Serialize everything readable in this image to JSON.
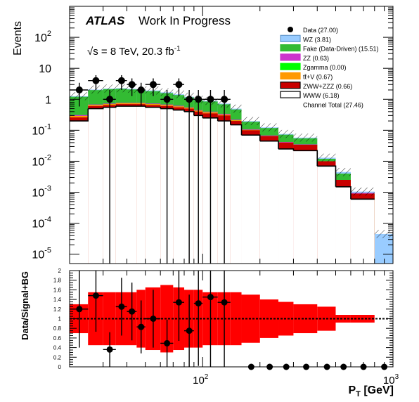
{
  "chart_data": [
    {
      "type": "stacked-histogram",
      "experiment_label": "ATLAS",
      "status_label": "Work In Progress",
      "energy_label": "√s = 8 TeV, 20.3 fb",
      "lumi_superscript": "-1",
      "ylabel": "Events",
      "yscale": "log",
      "ylim": [
        5e-06,
        1000
      ],
      "y_ticks": [
        {
          "value": 1e-05,
          "base": "10",
          "exp": "-5"
        },
        {
          "value": 0.0001,
          "base": "10",
          "exp": "-4"
        },
        {
          "value": 0.001,
          "base": "10",
          "exp": "-3"
        },
        {
          "value": 0.01,
          "base": "10",
          "exp": "-2"
        },
        {
          "value": 0.1,
          "base": "10",
          "exp": "-1"
        },
        {
          "value": 1,
          "base": "1",
          "exp": ""
        },
        {
          "value": 10,
          "base": "10",
          "exp": ""
        },
        {
          "value": 100,
          "base": "10",
          "exp": "2"
        }
      ],
      "bin_edges": [
        20,
        25,
        30,
        35,
        40,
        45,
        50,
        60,
        70,
        80,
        90,
        100,
        120,
        140,
        160,
        200,
        250,
        300,
        400,
        500,
        600,
        800,
        1000
      ],
      "stack": [
        {
          "name": "WWW",
          "color": "#ffffff",
          "values": [
            0.2,
            0.5,
            0.55,
            0.6,
            0.6,
            0.6,
            0.55,
            0.5,
            0.45,
            0.4,
            0.3,
            0.25,
            0.2,
            0.15,
            0.07,
            0.045,
            0.025,
            0.022,
            0.007,
            0.0015,
            0.0006,
            0,
            0
          ]
        },
        {
          "name": "ZWW+ZZZ",
          "color": "#c80000",
          "values": [
            0.06,
            0.1,
            0.1,
            0.1,
            0.1,
            0.1,
            0.1,
            0.1,
            0.1,
            0.1,
            0.1,
            0.1,
            0.1,
            0.05,
            0.03,
            0.02,
            0.015,
            0.012,
            0.003,
            0.001,
            0.0003,
            0,
            0
          ]
        },
        {
          "name": "tt̄+V",
          "color": "#ff9900",
          "values": [
            0.03,
            0.05,
            0.05,
            0.05,
            0.05,
            0.05,
            0.05,
            0.05,
            0.04,
            0.03,
            0.03,
            0.03,
            0.02,
            0.01,
            0.003,
            0,
            0,
            0,
            0,
            0,
            0,
            0,
            0
          ]
        },
        {
          "name": "Zgamma",
          "color": "#00ff00",
          "values": [
            0,
            0,
            0,
            0,
            0,
            0,
            0,
            0,
            0,
            0,
            0,
            0,
            0,
            0,
            0,
            0,
            0,
            0,
            0,
            0,
            0,
            0,
            0
          ]
        },
        {
          "name": "ZZ",
          "color": "#cc33cc",
          "values": [
            0.02,
            0.03,
            0.03,
            0.03,
            0.03,
            0.03,
            0.03,
            0.03,
            0.03,
            0.02,
            0.02,
            0.02,
            0.02,
            0.01,
            0.005,
            0.003,
            0.002,
            0.001,
            0,
            0,
            5e-05,
            0,
            0
          ]
        },
        {
          "name": "Fake (Data-Driven)",
          "color": "#33bb33",
          "values": [
            0.9,
            1.3,
            1.4,
            1.4,
            1.3,
            1.2,
            1.1,
            0.9,
            0.75,
            0.6,
            0.5,
            0.45,
            0.35,
            0.25,
            0.08,
            0.05,
            0.03,
            0.02,
            0.002,
            0.0015,
            0,
            0,
            0
          ]
        },
        {
          "name": "WZ",
          "color": "#99ccff",
          "values": [
            0.05,
            0.08,
            0.09,
            0.1,
            0.1,
            0.1,
            0.1,
            0.1,
            0.08,
            0.06,
            0.05,
            0.04,
            0.04,
            0.03,
            0.01,
            0.006,
            0.004,
            0.003,
            0.001,
            0.0005,
            0.0001,
            4.5e-05,
            0
          ]
        }
      ],
      "data_points": [
        {
          "x": 22.5,
          "y": 2
        },
        {
          "x": 27.5,
          "y": 4
        },
        {
          "x": 32.5,
          "y": 1
        },
        {
          "x": 37.5,
          "y": 4
        },
        {
          "x": 42.5,
          "y": 3
        },
        {
          "x": 47.5,
          "y": 2
        },
        {
          "x": 55,
          "y": 3
        },
        {
          "x": 65,
          "y": 1
        },
        {
          "x": 75,
          "y": 3
        },
        {
          "x": 85,
          "y": 1
        },
        {
          "x": 95,
          "y": 1
        },
        {
          "x": 110,
          "y": 1
        },
        {
          "x": 130,
          "y": 1
        }
      ],
      "legend": [
        {
          "label": "Data (27.00)",
          "kind": "marker"
        },
        {
          "label": "WZ (3.81)",
          "kind": "box",
          "color": "#99ccff",
          "stroke": "#6699cc"
        },
        {
          "label": "Fake (Data-Driven)  (15.51)",
          "kind": "box",
          "color": "#33bb33",
          "stroke": "#33bb33"
        },
        {
          "label": "ZZ (0.63)",
          "kind": "box",
          "color": "#cc33cc",
          "stroke": "#cc33cc"
        },
        {
          "label": "Zgamma (0.00)",
          "kind": "box",
          "color": "#00ff00",
          "stroke": "#00ff00"
        },
        {
          "label": "tt̄+V (0.67)",
          "kind": "box",
          "color": "#ff9900",
          "stroke": "#ff9900"
        },
        {
          "label": "ZWW+ZZZ (0.66)",
          "kind": "box",
          "color": "#c80000",
          "stroke": "#000000"
        },
        {
          "label": "WWW (6.18)",
          "kind": "box",
          "color": "#ffffff",
          "stroke": "#000000"
        },
        {
          "label": "Channel Total  (27.46)",
          "kind": "text"
        }
      ],
      "legend_position": "top-right"
    },
    {
      "type": "ratio",
      "ylabel": "Data/Signal+BG",
      "xlabel_main": "P",
      "xlabel_sub": "T",
      "xlabel_unit": " [GeV]",
      "xscale": "log",
      "xlim": [
        20,
        1000
      ],
      "ylim": [
        0,
        2
      ],
      "y_ticks": [
        "0",
        "0.2",
        "0.4",
        "0.6",
        "0.8",
        "1",
        "1.2",
        "1.4",
        "1.6",
        "1.8",
        "2"
      ],
      "x_ticks": [
        {
          "value": 100,
          "base": "10",
          "exp": "2"
        },
        {
          "value": 1000,
          "base": "10",
          "exp": "3"
        }
      ],
      "band_color": "#ff0000",
      "band_halfwidth": [
        0.3,
        0.55,
        0.55,
        0.55,
        0.55,
        0.6,
        0.65,
        0.7,
        0.65,
        0.6,
        0.6,
        0.55,
        0.55,
        0.55,
        0.5,
        0.4,
        0.35,
        0.3,
        0.25,
        0.08,
        0.08,
        0,
        0
      ],
      "ratio_points": [
        {
          "x": 22.5,
          "y": 1.2,
          "err": 0.8
        },
        {
          "x": 27.5,
          "y": 1.48,
          "err": 0.75
        },
        {
          "x": 32.5,
          "y": 0.36,
          "err": 0.36
        },
        {
          "x": 37.5,
          "y": 1.25,
          "err": 0.6
        },
        {
          "x": 42.5,
          "y": 1.15,
          "err": 0.6
        },
        {
          "x": 47.5,
          "y": 0.83,
          "err": 0.55
        },
        {
          "x": 55,
          "y": 1.0,
          "err": 0.6
        },
        {
          "x": 65,
          "y": 0.49,
          "err": 0.49
        },
        {
          "x": 75,
          "y": 1.34,
          "err": 0.8
        },
        {
          "x": 85,
          "y": 0.75,
          "err": 0.75
        },
        {
          "x": 95,
          "y": 1.32,
          "err": 1.3
        },
        {
          "x": 110,
          "y": 1.45,
          "err": 1.45
        },
        {
          "x": 130,
          "y": 1.34,
          "err": 1.34
        },
        {
          "x": 180,
          "y": 0,
          "err": 0
        },
        {
          "x": 225,
          "y": 0,
          "err": 0
        },
        {
          "x": 275,
          "y": 0,
          "err": 0
        },
        {
          "x": 350,
          "y": 0,
          "err": 0
        },
        {
          "x": 450,
          "y": 0,
          "err": 0
        },
        {
          "x": 550,
          "y": 0,
          "err": 0
        },
        {
          "x": 700,
          "y": 0,
          "err": 0
        },
        {
          "x": 900,
          "y": 0,
          "err": 0
        }
      ],
      "reference_line": 1
    }
  ]
}
